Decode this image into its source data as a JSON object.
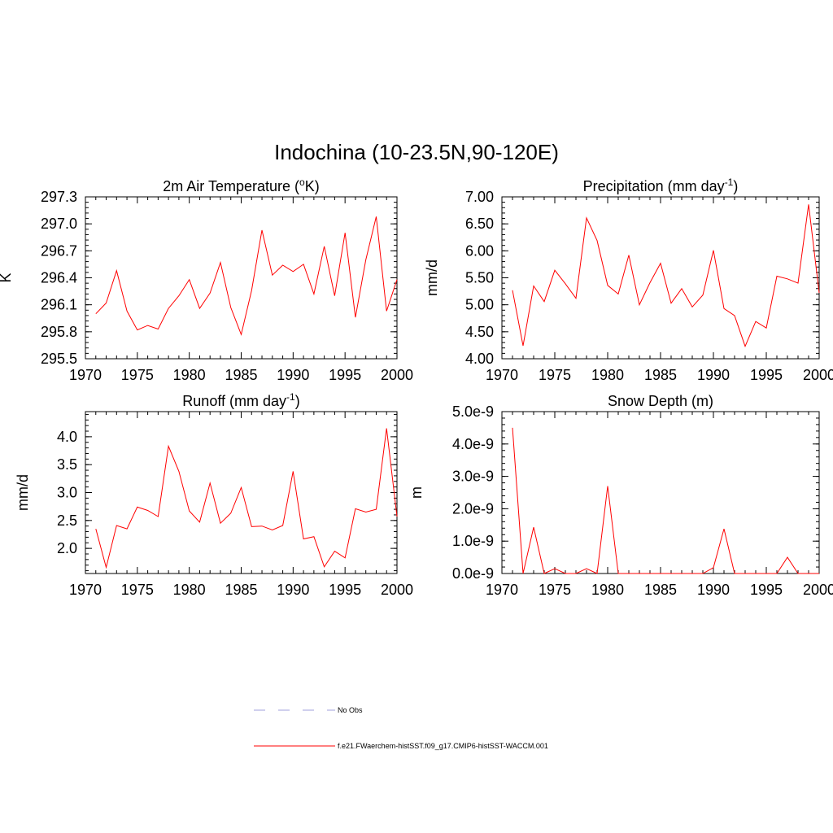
{
  "figure": {
    "title": "Indochina (10-23.5N,90-120E)"
  },
  "colors": {
    "model_line": "#ff0000",
    "obs_line": "#a0a0dc",
    "axis": "#000000"
  },
  "legend": [
    {
      "label": "No Obs",
      "style": "dashed"
    },
    {
      "label": "f.e21.FWaerchem-histSST.f09_g17.CMIP6-histSST-WACCM.001",
      "style": "solid"
    }
  ],
  "chart_data": [
    {
      "type": "line",
      "title_base": "2m Air Temperature (",
      "title_sup": "o",
      "title_end": "K)",
      "ylabel": "K",
      "xlim": [
        1970,
        2000
      ],
      "ylim": [
        295.5,
        297.3
      ],
      "x_ticks": [
        1970,
        1975,
        1980,
        1985,
        1990,
        1995,
        2000
      ],
      "y_ticks": [
        295.5,
        295.8,
        296.1,
        296.4,
        296.7,
        297.0,
        297.3
      ],
      "y_tick_labels": [
        "295.5",
        "295.8",
        "296.1",
        "296.4",
        "296.7",
        "297.0",
        "297.3"
      ],
      "x": [
        1971,
        1972,
        1973,
        1974,
        1975,
        1976,
        1977,
        1978,
        1979,
        1980,
        1981,
        1982,
        1983,
        1984,
        1985,
        1986,
        1987,
        1988,
        1989,
        1990,
        1991,
        1992,
        1993,
        1994,
        1995,
        1996,
        1997,
        1998,
        1999,
        2000
      ],
      "series": [
        {
          "values": [
            296.0,
            296.12,
            296.48,
            296.03,
            295.82,
            295.87,
            295.83,
            296.06,
            296.2,
            296.38,
            296.06,
            296.23,
            296.57,
            296.07,
            295.77,
            296.26,
            296.93,
            296.43,
            296.54,
            296.47,
            296.55,
            296.22,
            296.75,
            296.2,
            296.9,
            295.96,
            296.6,
            297.08,
            296.03,
            296.38
          ]
        }
      ]
    },
    {
      "type": "line",
      "title_base": "Precipitation (mm day",
      "title_sup": "-1",
      "title_end": ")",
      "ylabel": "mm/d",
      "xlim": [
        1970,
        2000
      ],
      "ylim": [
        4.0,
        7.0
      ],
      "x_ticks": [
        1970,
        1975,
        1980,
        1985,
        1990,
        1995,
        2000
      ],
      "y_ticks": [
        4.0,
        4.5,
        5.0,
        5.5,
        6.0,
        6.5,
        7.0
      ],
      "y_tick_labels": [
        "4.00",
        "4.50",
        "5.00",
        "5.50",
        "6.00",
        "6.50",
        "7.00"
      ],
      "x": [
        1971,
        1972,
        1973,
        1974,
        1975,
        1976,
        1977,
        1978,
        1979,
        1980,
        1981,
        1982,
        1983,
        1984,
        1985,
        1986,
        1987,
        1988,
        1989,
        1990,
        1991,
        1992,
        1993,
        1994,
        1995,
        1996,
        1997,
        1998,
        1999,
        2000
      ],
      "series": [
        {
          "values": [
            5.27,
            4.24,
            5.35,
            5.06,
            5.64,
            5.39,
            5.12,
            6.61,
            6.19,
            5.36,
            5.2,
            5.92,
            5.0,
            5.41,
            5.77,
            5.03,
            5.3,
            4.96,
            5.18,
            6.01,
            4.93,
            4.8,
            4.23,
            4.69,
            4.57,
            5.53,
            5.48,
            5.4,
            6.86,
            5.22
          ]
        }
      ]
    },
    {
      "type": "line",
      "title_base": "Runoff (mm day",
      "title_sup": "-1",
      "title_end": ")",
      "ylabel": "mm/d",
      "xlim": [
        1970,
        2000
      ],
      "ylim": [
        1.55,
        4.45
      ],
      "x_ticks": [
        1970,
        1975,
        1980,
        1985,
        1990,
        1995,
        2000
      ],
      "y_ticks": [
        2.0,
        2.5,
        3.0,
        3.5,
        4.0
      ],
      "y_tick_labels": [
        "2.0",
        "2.5",
        "3.0",
        "3.5",
        "4.0"
      ],
      "x": [
        1971,
        1972,
        1973,
        1974,
        1975,
        1976,
        1977,
        1978,
        1979,
        1980,
        1981,
        1982,
        1983,
        1984,
        1985,
        1986,
        1987,
        1988,
        1989,
        1990,
        1991,
        1992,
        1993,
        1994,
        1995,
        1996,
        1997,
        1998,
        1999,
        2000
      ],
      "series": [
        {
          "values": [
            2.35,
            1.66,
            2.41,
            2.35,
            2.74,
            2.68,
            2.57,
            3.83,
            3.38,
            2.67,
            2.47,
            3.17,
            2.45,
            2.63,
            3.09,
            2.39,
            2.4,
            2.33,
            2.41,
            3.38,
            2.17,
            2.21,
            1.67,
            1.95,
            1.83,
            2.71,
            2.65,
            2.7,
            4.15,
            2.57
          ]
        }
      ]
    },
    {
      "type": "line",
      "title": "Snow Depth (m)",
      "ylabel": "m",
      "xlim": [
        1970,
        2000
      ],
      "ylim": [
        0,
        5e-09
      ],
      "x_ticks": [
        1970,
        1975,
        1980,
        1985,
        1990,
        1995,
        2000
      ],
      "y_ticks": [
        0,
        1e-09,
        2e-09,
        3e-09,
        4e-09,
        5e-09
      ],
      "y_tick_labels": [
        "0.0e-9",
        "1.0e-9",
        "2.0e-9",
        "3.0e-9",
        "4.0e-9",
        "5.0e-9"
      ],
      "x": [
        1971,
        1972,
        1973,
        1974,
        1975,
        1976,
        1977,
        1978,
        1979,
        1980,
        1981,
        1982,
        1983,
        1984,
        1985,
        1986,
        1987,
        1988,
        1989,
        1990,
        1991,
        1992,
        1993,
        1994,
        1995,
        1996,
        1997,
        1998,
        1999,
        2000
      ],
      "series": [
        {
          "values": [
            4.5e-09,
            0,
            1.43e-09,
            0,
            1.5e-10,
            0,
            0,
            1.5e-10,
            0,
            2.7e-09,
            0,
            0,
            0,
            0,
            0,
            0,
            0,
            0,
            0,
            1.8e-10,
            1.38e-09,
            0,
            0,
            0,
            0,
            0,
            5e-10,
            0,
            0,
            0
          ]
        }
      ]
    }
  ]
}
